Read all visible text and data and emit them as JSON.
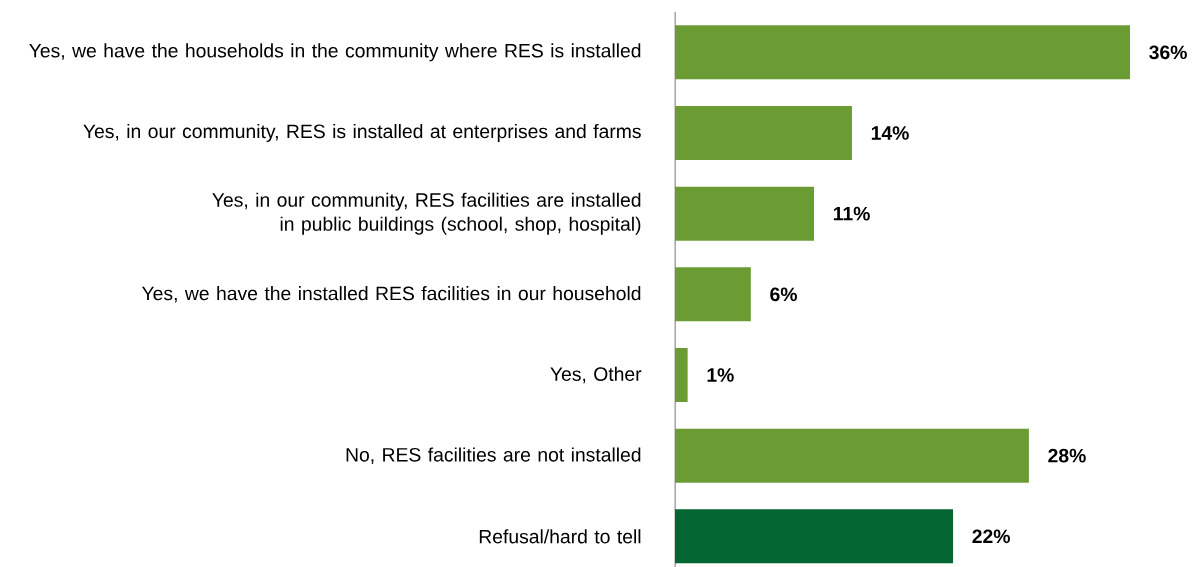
{
  "chart_data": {
    "type": "bar",
    "orientation": "horizontal",
    "categories": [
      "Yes, we have the households in the community where RES is installed",
      "Yes, in our community, RES is installed at enterprises and farms",
      "Yes, in our community, RES facilities are installed in public buildings (school, shop, hospital)",
      "Yes, we have the installed RES facilities in our household",
      "Yes, Other",
      "No, RES facilities are not installed",
      "Refusal/hard to tell"
    ],
    "values": [
      36,
      14,
      11,
      6,
      1,
      28,
      22
    ],
    "colors": [
      "#6a9c33",
      "#6a9c33",
      "#6a9c33",
      "#6a9c33",
      "#6a9c33",
      "#6a9c33",
      "#036633"
    ],
    "value_labels": [
      "36%",
      "14%",
      "11%",
      "6%",
      "1%",
      "28%",
      "22%"
    ]
  }
}
